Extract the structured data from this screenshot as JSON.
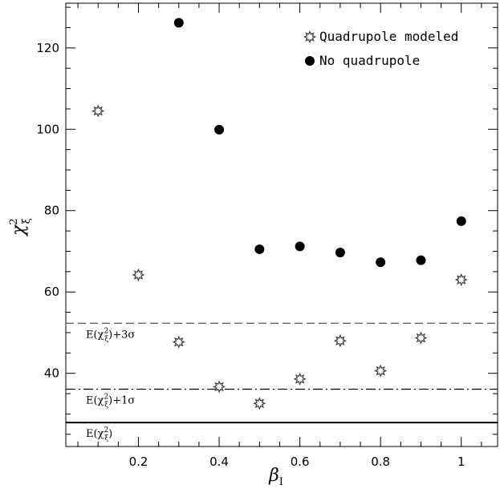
{
  "chart_data": {
    "type": "scatter",
    "xlabel": "β",
    "xlabel_sub": "I",
    "ylabel": "χ",
    "ylabel_sup": "2",
    "ylabel_sub": "ξ",
    "xlim": [
      0.02,
      1.09
    ],
    "ylim": [
      22,
      131
    ],
    "x_ticks": [
      0.2,
      0.4,
      0.6,
      0.8,
      1
    ],
    "x_tick_labels": [
      "0.2",
      "0.4",
      "0.6",
      "0.8",
      "1"
    ],
    "y_ticks": [
      40,
      60,
      80,
      100,
      120
    ],
    "y_tick_labels": [
      "40",
      "60",
      "80",
      "100",
      "120"
    ],
    "grid": false,
    "legend_position": "top-right",
    "series": [
      {
        "name": "Quadrupole modeled",
        "marker": "star-open",
        "color": "#444444",
        "x": [
          0.1,
          0.2,
          0.3,
          0.4,
          0.5,
          0.6,
          0.7,
          0.8,
          0.9,
          1.0
        ],
        "y": [
          104.5,
          64.2,
          47.7,
          36.7,
          32.6,
          38.6,
          48.0,
          40.6,
          48.7,
          63.0
        ]
      },
      {
        "name": "No quadrupole",
        "marker": "circle-filled",
        "color": "#000000",
        "x": [
          0.3,
          0.4,
          0.5,
          0.6,
          0.7,
          0.8,
          0.9,
          1.0
        ],
        "y": [
          126.2,
          99.9,
          70.5,
          71.2,
          69.7,
          67.3,
          67.8,
          77.4
        ]
      }
    ],
    "reference_lines": [
      {
        "label": "E(χ",
        "label_sup": "2",
        "label_sub": "ξ",
        "label_suffix": ")+3σ",
        "y": 52.3,
        "style": "dashed",
        "color": "#555555"
      },
      {
        "label": "E(χ",
        "label_sup": "2",
        "label_sub": "ξ",
        "label_suffix": ")+1σ",
        "y": 36.1,
        "style": "dashdot",
        "color": "#000000"
      },
      {
        "label": "E(χ",
        "label_sup": "2",
        "label_sub": "ξ",
        "label_suffix": ")",
        "y": 27.9,
        "style": "solid",
        "color": "#000000"
      }
    ]
  }
}
